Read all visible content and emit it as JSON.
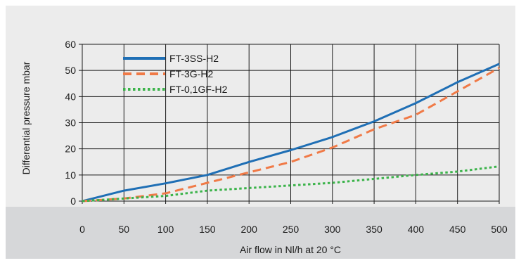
{
  "colors": {
    "page_background": "#ffffff",
    "plot_background": "#ececec",
    "axis_band": "#d6d7d9",
    "grid": "#1a1a1a",
    "text": "#1a1a1a"
  },
  "chart_data": {
    "type": "line",
    "title": "",
    "xlabel": "Air flow in Nl/h at 20 °C",
    "ylabel": "Differential pressure mbar",
    "xlim": [
      0,
      500
    ],
    "ylim": [
      0,
      60
    ],
    "xticks": [
      0,
      50,
      100,
      150,
      200,
      250,
      300,
      350,
      400,
      450,
      500
    ],
    "yticks": [
      0,
      10,
      20,
      30,
      40,
      50,
      60
    ],
    "grid": true,
    "legend_position": "top-left",
    "series": [
      {
        "name": "FT-3SS-H2",
        "color": "#1f6fb5",
        "line_style": "solid",
        "x": [
          0,
          50,
          100,
          150,
          200,
          250,
          300,
          350,
          400,
          450,
          500
        ],
        "y": [
          0,
          4,
          6.8,
          10,
          15,
          19.5,
          24.5,
          30.5,
          37.5,
          45.5,
          52.5
        ]
      },
      {
        "name": "FT-3G-H2",
        "color": "#f07a47",
        "line_style": "dashed",
        "x": [
          0,
          50,
          100,
          150,
          200,
          250,
          300,
          350,
          400,
          450,
          500
        ],
        "y": [
          0,
          1,
          3,
          7,
          11,
          15,
          20.5,
          27.5,
          33,
          42,
          51
        ]
      },
      {
        "name": "FT-0,1GF-H2",
        "color": "#3bb34a",
        "line_style": "dotted",
        "x": [
          0,
          50,
          100,
          150,
          200,
          250,
          300,
          350,
          400,
          450,
          500
        ],
        "y": [
          0,
          1,
          2,
          4,
          5,
          6,
          7,
          8.5,
          10,
          11.3,
          13.3
        ]
      }
    ]
  }
}
